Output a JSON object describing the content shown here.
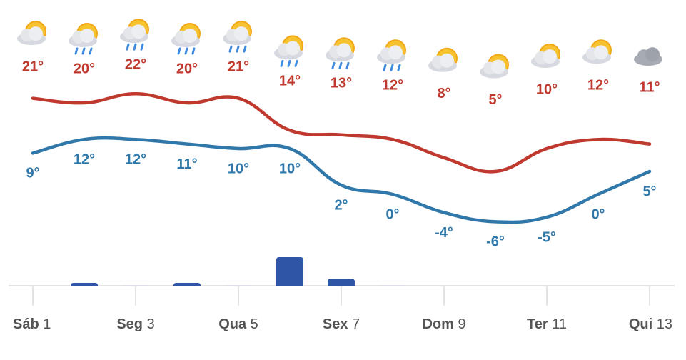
{
  "chart_data": {
    "type": "weather",
    "categories": [
      "Sáb 1",
      null,
      "Seg 3",
      null,
      "Qua 5",
      null,
      "Sex 7",
      null,
      "Dom 9",
      null,
      "Ter 11",
      null,
      "Qui 13"
    ],
    "series": [
      {
        "color": "#c0392f",
        "values": [
          21,
          20,
          22,
          20,
          21,
          14,
          13,
          12,
          8,
          5,
          10,
          12,
          11
        ],
        "value_labels": [
          "21°",
          "20°",
          "22°",
          "20°",
          "21°",
          "14°",
          "13°",
          "12°",
          "8°",
          "5°",
          "10°",
          "12°",
          "11°"
        ]
      },
      {
        "color": "#2f78a9",
        "values": [
          9,
          12,
          12,
          11,
          10,
          10,
          2,
          0,
          -4,
          -6,
          -5,
          0,
          5
        ],
        "value_labels": [
          "9°",
          "12°",
          "12°",
          "11°",
          "10°",
          "10°",
          "2°",
          "0°",
          "-4°",
          "-6°",
          "-5°",
          "0°",
          "5°"
        ]
      }
    ],
    "ylim": [
      -10,
      25
    ],
    "precipitation": {
      "color": "#2f55a6",
      "values": [
        0,
        0.5,
        0.1,
        0.5,
        0.1,
        5,
        1.2,
        0.1,
        0,
        0,
        0,
        0,
        0
      ],
      "ylim": [
        0,
        5
      ]
    }
  }
}
